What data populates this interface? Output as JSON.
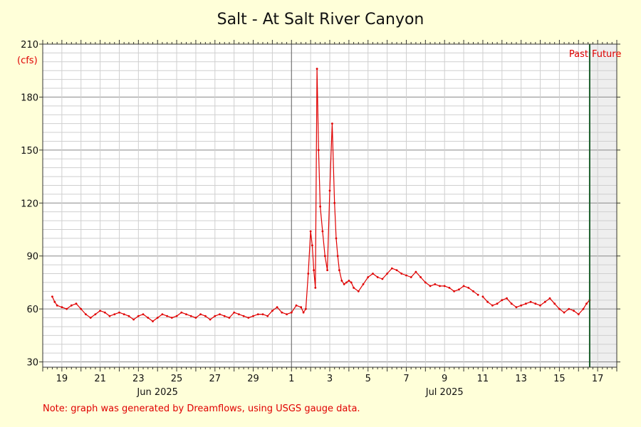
{
  "chart_data": {
    "type": "line",
    "title": "Salt - At Salt River Canyon",
    "ylabel": "(cfs)",
    "ylim": [
      27,
      210
    ],
    "yticks": [
      30,
      60,
      90,
      120,
      150,
      180,
      210
    ],
    "x_start": "2025-06-18",
    "x_end": "2025-07-18",
    "x_tick_labels": [
      "19",
      "21",
      "23",
      "25",
      "27",
      "29",
      "1",
      "3",
      "5",
      "7",
      "9",
      "11",
      "13",
      "15",
      "17"
    ],
    "month_labels": [
      "Jun 2025",
      "Jul 2025"
    ],
    "past_label": "Past",
    "future_label": "Future",
    "now_marker": "2025-07-16T14:00",
    "grid": true,
    "line_color": "#e00000",
    "series": [
      {
        "x": [
          "2025-06-18T12:00",
          "2025-06-18T15:00",
          "2025-06-18T18:00",
          "2025-06-19T00:00",
          "2025-06-19T06:00",
          "2025-06-19T12:00",
          "2025-06-19T18:00",
          "2025-06-20T00:00",
          "2025-06-20T06:00",
          "2025-06-20T12:00",
          "2025-06-20T18:00",
          "2025-06-21T00:00",
          "2025-06-21T06:00",
          "2025-06-21T12:00",
          "2025-06-21T18:00",
          "2025-06-22T00:00",
          "2025-06-22T06:00",
          "2025-06-22T12:00",
          "2025-06-22T18:00",
          "2025-06-23T00:00",
          "2025-06-23T06:00",
          "2025-06-23T12:00",
          "2025-06-23T18:00",
          "2025-06-24T00:00",
          "2025-06-24T06:00",
          "2025-06-24T12:00",
          "2025-06-24T18:00",
          "2025-06-25T00:00",
          "2025-06-25T06:00",
          "2025-06-25T12:00",
          "2025-06-25T18:00",
          "2025-06-26T00:00",
          "2025-06-26T06:00",
          "2025-06-26T12:00",
          "2025-06-26T18:00",
          "2025-06-27T00:00",
          "2025-06-27T06:00",
          "2025-06-27T12:00",
          "2025-06-27T18:00",
          "2025-06-28T00:00",
          "2025-06-28T06:00",
          "2025-06-28T12:00",
          "2025-06-28T18:00",
          "2025-06-29T00:00",
          "2025-06-29T06:00",
          "2025-06-29T12:00",
          "2025-06-29T18:00",
          "2025-06-30T00:00",
          "2025-06-30T06:00",
          "2025-06-30T12:00",
          "2025-06-30T18:00",
          "2025-07-01T00:00",
          "2025-07-01T06:00",
          "2025-07-01T12:00",
          "2025-07-01T15:00",
          "2025-07-01T18:00",
          "2025-07-01T21:00",
          "2025-07-02T00:00",
          "2025-07-02T02:00",
          "2025-07-02T04:00",
          "2025-07-02T06:00",
          "2025-07-02T08:00",
          "2025-07-02T10:00",
          "2025-07-02T12:00",
          "2025-07-02T15:00",
          "2025-07-02T18:00",
          "2025-07-02T21:00",
          "2025-07-03T00:00",
          "2025-07-03T03:00",
          "2025-07-03T06:00",
          "2025-07-03T08:00",
          "2025-07-03T10:00",
          "2025-07-03T12:00",
          "2025-07-03T15:00",
          "2025-07-03T18:00",
          "2025-07-03T21:00",
          "2025-07-04T00:00",
          "2025-07-04T03:00",
          "2025-07-04T06:00",
          "2025-07-04T12:00",
          "2025-07-04T18:00",
          "2025-07-05T00:00",
          "2025-07-05T06:00",
          "2025-07-05T12:00",
          "2025-07-05T18:00",
          "2025-07-06T00:00",
          "2025-07-06T06:00",
          "2025-07-06T12:00",
          "2025-07-06T18:00",
          "2025-07-07T00:00",
          "2025-07-07T06:00",
          "2025-07-07T12:00",
          "2025-07-07T18:00",
          "2025-07-08T00:00",
          "2025-07-08T06:00",
          "2025-07-08T12:00",
          "2025-07-08T18:00",
          "2025-07-09T00:00",
          "2025-07-09T06:00",
          "2025-07-09T12:00",
          "2025-07-09T18:00",
          "2025-07-10T00:00",
          "2025-07-10T06:00",
          "2025-07-10T12:00",
          "2025-07-10T18:00"
        ],
        "y": [
          67,
          64,
          62,
          61,
          60,
          62,
          63,
          60,
          57,
          55,
          57,
          59,
          58,
          56,
          57,
          58,
          57,
          56,
          54,
          56,
          57,
          55,
          53,
          55,
          57,
          56,
          55,
          56,
          58,
          57,
          56,
          55,
          57,
          56,
          54,
          56,
          57,
          56,
          55,
          58,
          57,
          56,
          55,
          56,
          57,
          57,
          56,
          59,
          61,
          58,
          57,
          58,
          62,
          61,
          58,
          60,
          80,
          104,
          96,
          82,
          72,
          196,
          150,
          118,
          104,
          90,
          82,
          127,
          165,
          120,
          100,
          90,
          82,
          76,
          74,
          75,
          76,
          75,
          72,
          70,
          74,
          78,
          80,
          78,
          77,
          80,
          83,
          82,
          80,
          79,
          78,
          81,
          78,
          75,
          73,
          74,
          73,
          73,
          72,
          70,
          71,
          73,
          72,
          70,
          68
        ]
      },
      {
        "x": [
          "2025-07-11T00:00",
          "2025-07-11T06:00",
          "2025-07-11T12:00",
          "2025-07-11T18:00",
          "2025-07-12T00:00",
          "2025-07-12T06:00",
          "2025-07-12T12:00",
          "2025-07-12T18:00",
          "2025-07-13T00:00",
          "2025-07-13T06:00",
          "2025-07-13T12:00",
          "2025-07-13T18:00",
          "2025-07-14T00:00",
          "2025-07-14T06:00",
          "2025-07-14T12:00",
          "2025-07-14T18:00",
          "2025-07-15T00:00",
          "2025-07-15T06:00",
          "2025-07-15T12:00",
          "2025-07-15T18:00",
          "2025-07-16T00:00",
          "2025-07-16T06:00",
          "2025-07-16T10:00",
          "2025-07-16T14:00"
        ],
        "y": [
          67,
          64,
          62,
          63,
          65,
          66,
          63,
          61,
          62,
          63,
          64,
          63,
          62,
          64,
          66,
          63,
          60,
          58,
          60,
          59,
          57,
          60,
          63,
          65
        ]
      }
    ],
    "note": "Note: graph was generated by Dreamflows, using USGS gauge data."
  }
}
